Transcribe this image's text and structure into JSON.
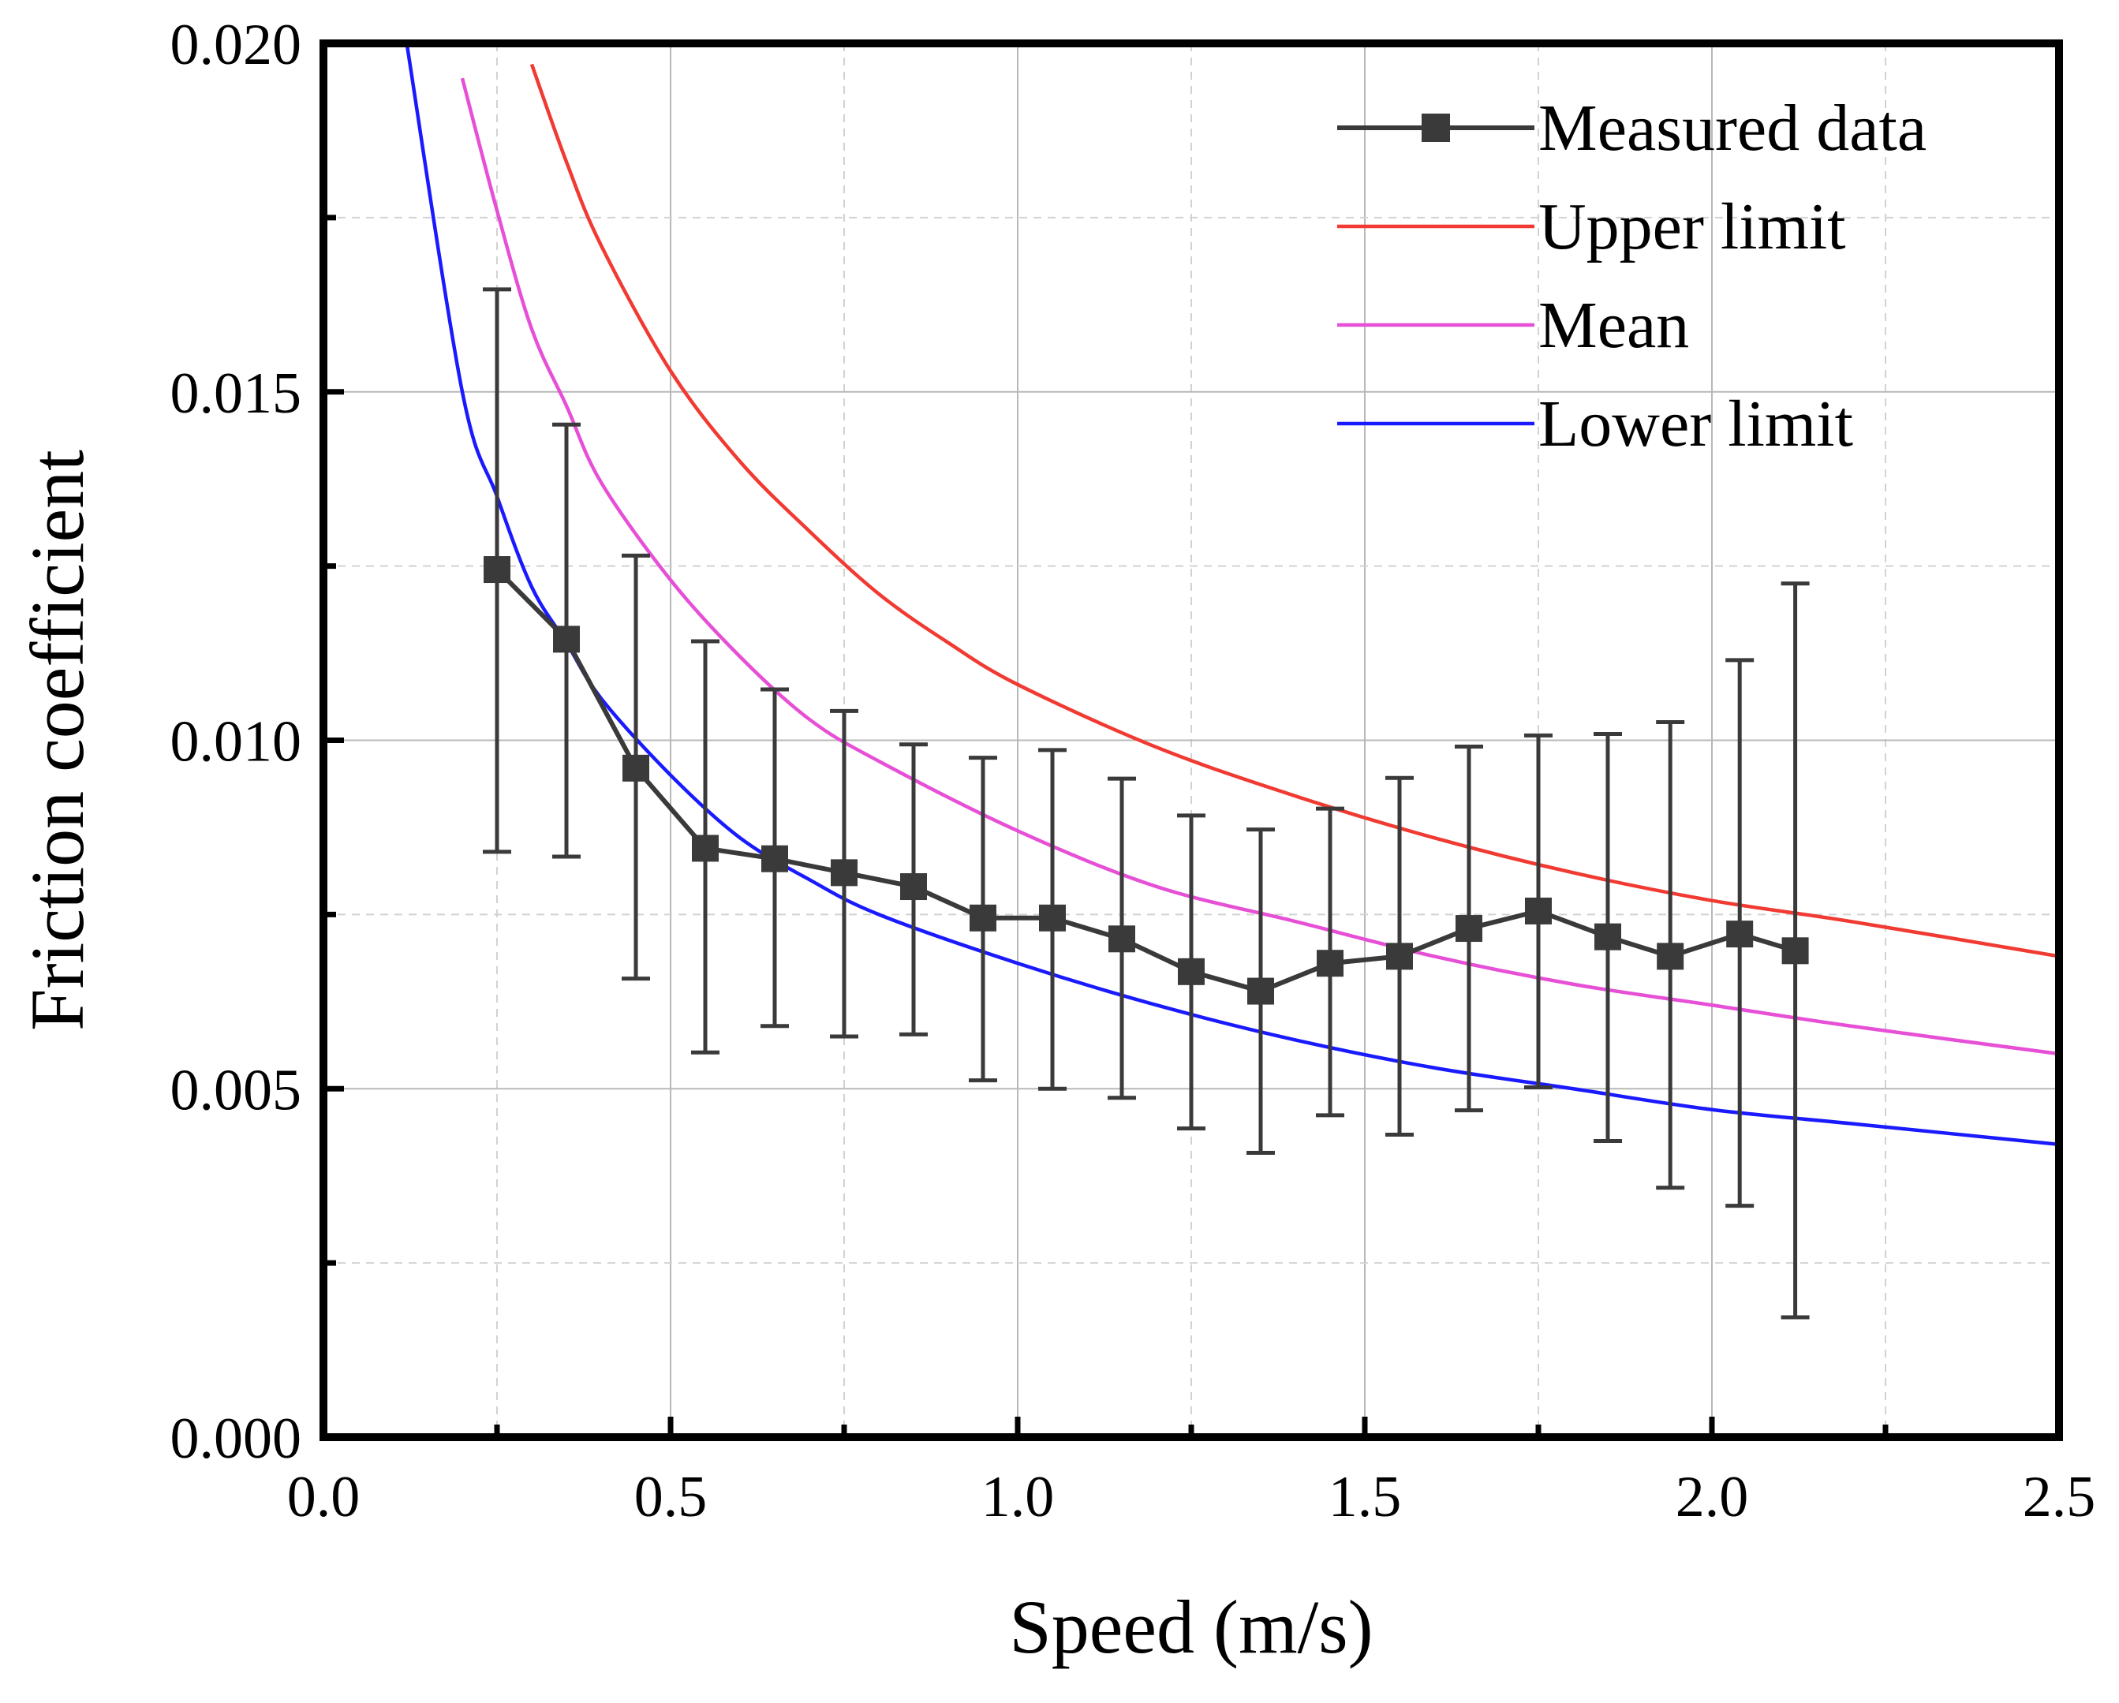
{
  "chart_data": {
    "type": "line",
    "xlabel": "Speed (m/s)",
    "ylabel": "Friction coefficient",
    "xlim": [
      0,
      2.5
    ],
    "ylim": [
      0,
      0.02
    ],
    "x_ticks": [
      "0.0",
      "0.5",
      "1.0",
      "1.5",
      "2.0",
      "2.5"
    ],
    "y_ticks": [
      "0.000",
      "0.005",
      "0.010",
      "0.015",
      "0.020"
    ],
    "x_tick_values": [
      0,
      0.5,
      1.0,
      1.5,
      2.0,
      2.5
    ],
    "y_tick_values": [
      0,
      0.005,
      0.01,
      0.015,
      0.02
    ],
    "grid": true,
    "legend_position": "top-right",
    "measured": {
      "name": "Measured data",
      "color": "#3a3a3a",
      "x": [
        0.25,
        0.35,
        0.45,
        0.55,
        0.65,
        0.75,
        0.85,
        0.95,
        1.05,
        1.15,
        1.25,
        1.35,
        1.45,
        1.55,
        1.65,
        1.75,
        1.85,
        1.94,
        2.04,
        2.12
      ],
      "y": [
        0.01245,
        0.01145,
        0.0096,
        0.00845,
        0.0083,
        0.0081,
        0.0079,
        0.00745,
        0.00745,
        0.00715,
        0.00668,
        0.0064,
        0.0068,
        0.0069,
        0.0073,
        0.00755,
        0.00718,
        0.0069,
        0.00722,
        0.00698
      ],
      "err_low": [
        0.0084,
        0.00833,
        0.00658,
        0.00552,
        0.0059,
        0.00575,
        0.00578,
        0.00512,
        0.005,
        0.00487,
        0.00443,
        0.00408,
        0.00462,
        0.00434,
        0.00469,
        0.00502,
        0.00425,
        0.00358,
        0.00332,
        0.00172
      ],
      "err_high": [
        0.01647,
        0.01453,
        0.01265,
        0.01142,
        0.01073,
        0.01042,
        0.00994,
        0.00975,
        0.00986,
        0.00945,
        0.00892,
        0.00872,
        0.00902,
        0.00946,
        0.00991,
        0.01007,
        0.01009,
        0.01026,
        0.01115,
        0.01225
      ]
    },
    "series": [
      {
        "name": "Upper limit",
        "color": "#f03a32",
        "x": [
          0.3,
          0.35,
          0.4,
          0.5,
          0.6,
          0.7,
          0.8,
          0.9,
          1.0,
          1.2,
          1.4,
          1.6,
          1.8,
          2.0,
          2.2,
          2.5
        ],
        "y": [
          0.0197,
          0.0183,
          0.0171,
          0.0153,
          0.014,
          0.013,
          0.0121,
          0.0114,
          0.0108,
          0.0099,
          0.0092,
          0.0086,
          0.0081,
          0.0077,
          0.0074,
          0.0069
        ]
      },
      {
        "name": "Mean",
        "color": "#e64fd6",
        "x": [
          0.2,
          0.25,
          0.3,
          0.35,
          0.4,
          0.5,
          0.6,
          0.7,
          0.8,
          1.0,
          1.2,
          1.4,
          1.6,
          1.8,
          2.0,
          2.2,
          2.5
        ],
        "y": [
          0.0195,
          0.0176,
          0.0159,
          0.0148,
          0.0137,
          0.0123,
          0.0112,
          0.0103,
          0.0097,
          0.0087,
          0.0079,
          0.0074,
          0.0069,
          0.0065,
          0.0062,
          0.0059,
          0.0055
        ]
      },
      {
        "name": "Lower limit",
        "color": "#1a1aff",
        "x": [
          0.12,
          0.2,
          0.25,
          0.3,
          0.35,
          0.4,
          0.5,
          0.6,
          0.7,
          0.8,
          1.0,
          1.2,
          1.4,
          1.6,
          1.8,
          2.0,
          2.2,
          2.5
        ],
        "y": [
          0.02,
          0.015,
          0.0135,
          0.0122,
          0.0114,
          0.0106,
          0.0095,
          0.0086,
          0.008,
          0.0075,
          0.0068,
          0.0062,
          0.0057,
          0.0053,
          0.005,
          0.0047,
          0.0045,
          0.0042
        ]
      }
    ]
  }
}
